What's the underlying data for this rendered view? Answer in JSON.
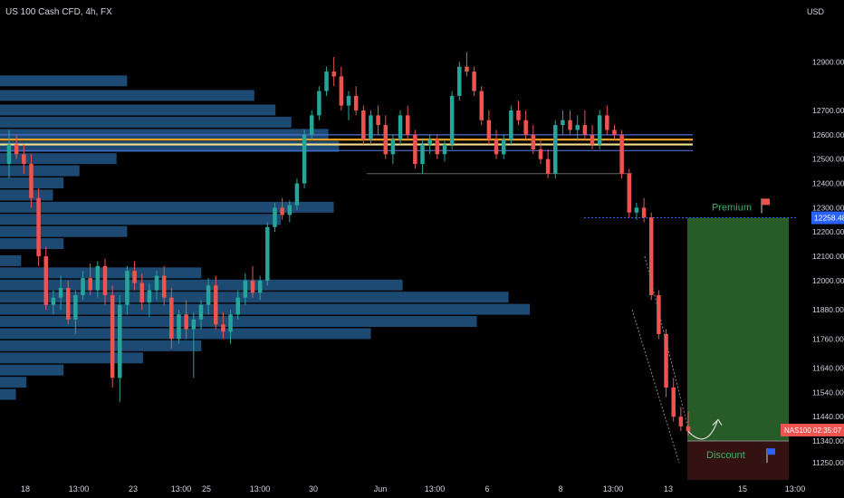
{
  "symbol_header": "US 100 Cash CFD, 4h, FX",
  "currency": "USD",
  "colors": {
    "background": "#000000",
    "up": "#26a69a",
    "down": "#ef5350",
    "volume_profile": "#1f4e79",
    "level_orange": "#f5a623",
    "level_yellow": "#f7e08a",
    "level_blue": "#4d6bd6",
    "premium_zone": "#2e6b2e",
    "discount_zone": "#3a1414",
    "price_tag": "#ef5350",
    "current_level_tag": "#2962ff"
  },
  "chart_data": {
    "type": "candlestick",
    "title": "US 100 Cash CFD, 4h, FX",
    "ylim": [
      11180,
      13080
    ],
    "y_ticks": [
      "12900.00",
      "12700.00",
      "12600.00",
      "12500.00",
      "12400.00",
      "12300.00",
      "12200.00",
      "12100.00",
      "12000.00",
      "11880.00",
      "11760.00",
      "11640.00",
      "11540.00",
      "11440.00",
      "11340.00",
      "11250.00"
    ],
    "x_ticks": [
      "18",
      "13:00",
      "23",
      "13:00",
      "25",
      "13:00",
      "30",
      "Jun",
      "13:00",
      "6",
      "8",
      "13:00",
      "13",
      "15",
      "13:00"
    ],
    "candles": [
      [
        12480,
        12620,
        12420,
        12560
      ],
      [
        12560,
        12600,
        12500,
        12520
      ],
      [
        12520,
        12560,
        12440,
        12480
      ],
      [
        12480,
        12520,
        12300,
        12340
      ],
      [
        12340,
        12380,
        12060,
        12100
      ],
      [
        12100,
        12140,
        11880,
        11900
      ],
      [
        11900,
        11960,
        11860,
        11930
      ],
      [
        11930,
        12020,
        11880,
        11970
      ],
      [
        11970,
        12000,
        11820,
        11840
      ],
      [
        11840,
        11960,
        11780,
        11940
      ],
      [
        11940,
        12040,
        11920,
        12010
      ],
      [
        12010,
        12070,
        11940,
        11960
      ],
      [
        11960,
        12080,
        11930,
        12060
      ],
      [
        12060,
        12090,
        11900,
        11940
      ],
      [
        11940,
        11980,
        11560,
        11600
      ],
      [
        11600,
        11940,
        11500,
        11900
      ],
      [
        11900,
        12060,
        11860,
        12040
      ],
      [
        12040,
        12080,
        11960,
        11990
      ],
      [
        11990,
        12030,
        11880,
        11910
      ],
      [
        11910,
        11990,
        11850,
        11960
      ],
      [
        11960,
        12040,
        11920,
        12020
      ],
      [
        12020,
        12060,
        11900,
        11930
      ],
      [
        11930,
        11970,
        11720,
        11760
      ],
      [
        11760,
        11880,
        11740,
        11860
      ],
      [
        11860,
        11920,
        11760,
        11800
      ],
      [
        11800,
        11870,
        11600,
        11840
      ],
      [
        11840,
        11920,
        11800,
        11900
      ],
      [
        11900,
        12010,
        11860,
        11980
      ],
      [
        11980,
        12020,
        11800,
        11820
      ],
      [
        11820,
        11870,
        11760,
        11790
      ],
      [
        11790,
        11880,
        11740,
        11860
      ],
      [
        11860,
        11960,
        11840,
        11930
      ],
      [
        11930,
        12030,
        11900,
        12000
      ],
      [
        12000,
        12060,
        11930,
        11950
      ],
      [
        11950,
        12020,
        11920,
        12000
      ],
      [
        12000,
        12240,
        11980,
        12220
      ],
      [
        12220,
        12320,
        12200,
        12300
      ],
      [
        12300,
        12340,
        12250,
        12270
      ],
      [
        12270,
        12330,
        12240,
        12310
      ],
      [
        12310,
        12420,
        12290,
        12400
      ],
      [
        12400,
        12620,
        12380,
        12600
      ],
      [
        12600,
        12700,
        12580,
        12680
      ],
      [
        12680,
        12800,
        12660,
        12780
      ],
      [
        12780,
        12880,
        12760,
        12860
      ],
      [
        12860,
        12920,
        12800,
        12840
      ],
      [
        12840,
        12880,
        12700,
        12720
      ],
      [
        12720,
        12780,
        12660,
        12760
      ],
      [
        12760,
        12800,
        12680,
        12700
      ],
      [
        12700,
        12720,
        12560,
        12580
      ],
      [
        12580,
        12700,
        12560,
        12680
      ],
      [
        12680,
        12720,
        12600,
        12640
      ],
      [
        12640,
        12680,
        12500,
        12520
      ],
      [
        12520,
        12600,
        12480,
        12580
      ],
      [
        12580,
        12700,
        12560,
        12680
      ],
      [
        12680,
        12720,
        12580,
        12600
      ],
      [
        12600,
        12620,
        12460,
        12480
      ],
      [
        12480,
        12580,
        12440,
        12560
      ],
      [
        12560,
        12600,
        12520,
        12580
      ],
      [
        12580,
        12600,
        12500,
        12520
      ],
      [
        12520,
        12580,
        12490,
        12560
      ],
      [
        12560,
        12780,
        12540,
        12760
      ],
      [
        12760,
        12900,
        12740,
        12880
      ],
      [
        12880,
        12940,
        12840,
        12860
      ],
      [
        12860,
        12880,
        12760,
        12780
      ],
      [
        12780,
        12800,
        12640,
        12660
      ],
      [
        12660,
        12700,
        12560,
        12580
      ],
      [
        12580,
        12620,
        12500,
        12520
      ],
      [
        12520,
        12600,
        12500,
        12580
      ],
      [
        12580,
        12720,
        12560,
        12700
      ],
      [
        12700,
        12740,
        12640,
        12660
      ],
      [
        12660,
        12700,
        12580,
        12600
      ],
      [
        12600,
        12640,
        12520,
        12540
      ],
      [
        12540,
        12580,
        12480,
        12500
      ],
      [
        12500,
        12540,
        12420,
        12440
      ],
      [
        12440,
        12660,
        12420,
        12640
      ],
      [
        12640,
        12700,
        12600,
        12660
      ],
      [
        12660,
        12700,
        12600,
        12620
      ],
      [
        12620,
        12680,
        12580,
        12640
      ],
      [
        12640,
        12700,
        12580,
        12600
      ],
      [
        12600,
        12640,
        12540,
        12560
      ],
      [
        12560,
        12700,
        12540,
        12680
      ],
      [
        12680,
        12720,
        12600,
        12620
      ],
      [
        12620,
        12640,
        12580,
        12600
      ],
      [
        12600,
        12620,
        12420,
        12440
      ],
      [
        12440,
        12460,
        12260,
        12280
      ],
      [
        12280,
        12320,
        12250,
        12300
      ],
      [
        12300,
        12340,
        12240,
        12260
      ],
      [
        12260,
        12280,
        11920,
        11940
      ],
      [
        11940,
        11960,
        11760,
        11780
      ],
      [
        11780,
        11800,
        11520,
        11560
      ],
      [
        11560,
        11600,
        11420,
        11440
      ],
      [
        11440,
        11480,
        11380,
        11400
      ],
      [
        11400,
        11460,
        11360,
        11380
      ]
    ],
    "horizontal_levels": [
      {
        "price": 12600,
        "color": "blue"
      },
      {
        "price": 12580,
        "color": "orange"
      },
      {
        "price": 12560,
        "color": "yellow"
      },
      {
        "price": 12535,
        "color": "blue"
      }
    ],
    "support_line_price": 12440,
    "current_level": {
      "price": 12258.48,
      "label": "12258.48"
    },
    "price_tag": {
      "label": "NAS100",
      "time": "02:35:07",
      "price": 11385
    },
    "zones": {
      "premium": {
        "label": "Premium",
        "top": 12258.48,
        "bottom": 11340
      },
      "discount": {
        "label": "Discount",
        "top": 11340,
        "bottom": 11180
      }
    },
    "volume_profile_buckets": [
      {
        "price": 12820,
        "value": 0.24
      },
      {
        "price": 12760,
        "value": 0.48
      },
      {
        "price": 12700,
        "value": 0.52
      },
      {
        "price": 12650,
        "value": 0.55
      },
      {
        "price": 12600,
        "value": 0.62
      },
      {
        "price": 12550,
        "value": 0.64
      },
      {
        "price": 12500,
        "value": 0.22
      },
      {
        "price": 12450,
        "value": 0.15
      },
      {
        "price": 12400,
        "value": 0.12
      },
      {
        "price": 12350,
        "value": 0.1
      },
      {
        "price": 12300,
        "value": 0.63
      },
      {
        "price": 12250,
        "value": 0.53
      },
      {
        "price": 12200,
        "value": 0.24
      },
      {
        "price": 12150,
        "value": 0.12
      },
      {
        "price": 12080,
        "value": 0.04
      },
      {
        "price": 12030,
        "value": 0.38
      },
      {
        "price": 11980,
        "value": 0.76
      },
      {
        "price": 11930,
        "value": 0.96
      },
      {
        "price": 11880,
        "value": 1.0
      },
      {
        "price": 11830,
        "value": 0.9
      },
      {
        "price": 11780,
        "value": 0.7
      },
      {
        "price": 11730,
        "value": 0.38
      },
      {
        "price": 11680,
        "value": 0.27
      },
      {
        "price": 11630,
        "value": 0.12
      },
      {
        "price": 11580,
        "value": 0.05
      },
      {
        "price": 11530,
        "value": 0.03
      }
    ]
  }
}
